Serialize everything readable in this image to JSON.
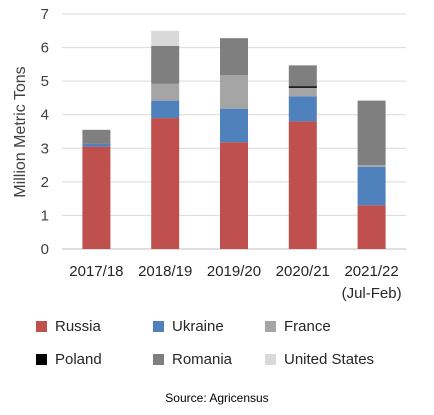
{
  "chart_data": {
    "type": "bar",
    "stacked": true,
    "categories": [
      "2017/18",
      "2018/19",
      "2019/20",
      "2020/21",
      "2021/22"
    ],
    "category_sublabels": [
      "",
      "",
      "",
      "",
      "(Jul-Feb)"
    ],
    "ylabel": "Million Metric Tons",
    "ylim": [
      0,
      7
    ],
    "yticks": [
      0,
      1,
      2,
      3,
      4,
      5,
      6,
      7
    ],
    "grid": true,
    "legend_position": "bottom",
    "series": [
      {
        "name": "Russia",
        "color": "#C0504D",
        "values": [
          3.05,
          3.9,
          3.18,
          3.8,
          1.3
        ]
      },
      {
        "name": "Ukraine",
        "color": "#4F81BD",
        "values": [
          0.08,
          0.52,
          1.0,
          0.75,
          1.15
        ]
      },
      {
        "name": "France",
        "color": "#A5A5A5",
        "values": [
          0.0,
          0.5,
          1.0,
          0.25,
          0.05
        ]
      },
      {
        "name": "Poland",
        "color": "#000000",
        "values": [
          0.0,
          0.0,
          0.0,
          0.05,
          0.0
        ]
      },
      {
        "name": "Romania",
        "color": "#7F7F7F",
        "values": [
          0.42,
          1.13,
          1.1,
          0.62,
          1.92
        ]
      },
      {
        "name": "United States",
        "color": "#D9D9D9",
        "values": [
          0.0,
          0.45,
          0.0,
          0.0,
          0.0
        ]
      }
    ]
  },
  "source_note": "Source: Agricensus"
}
